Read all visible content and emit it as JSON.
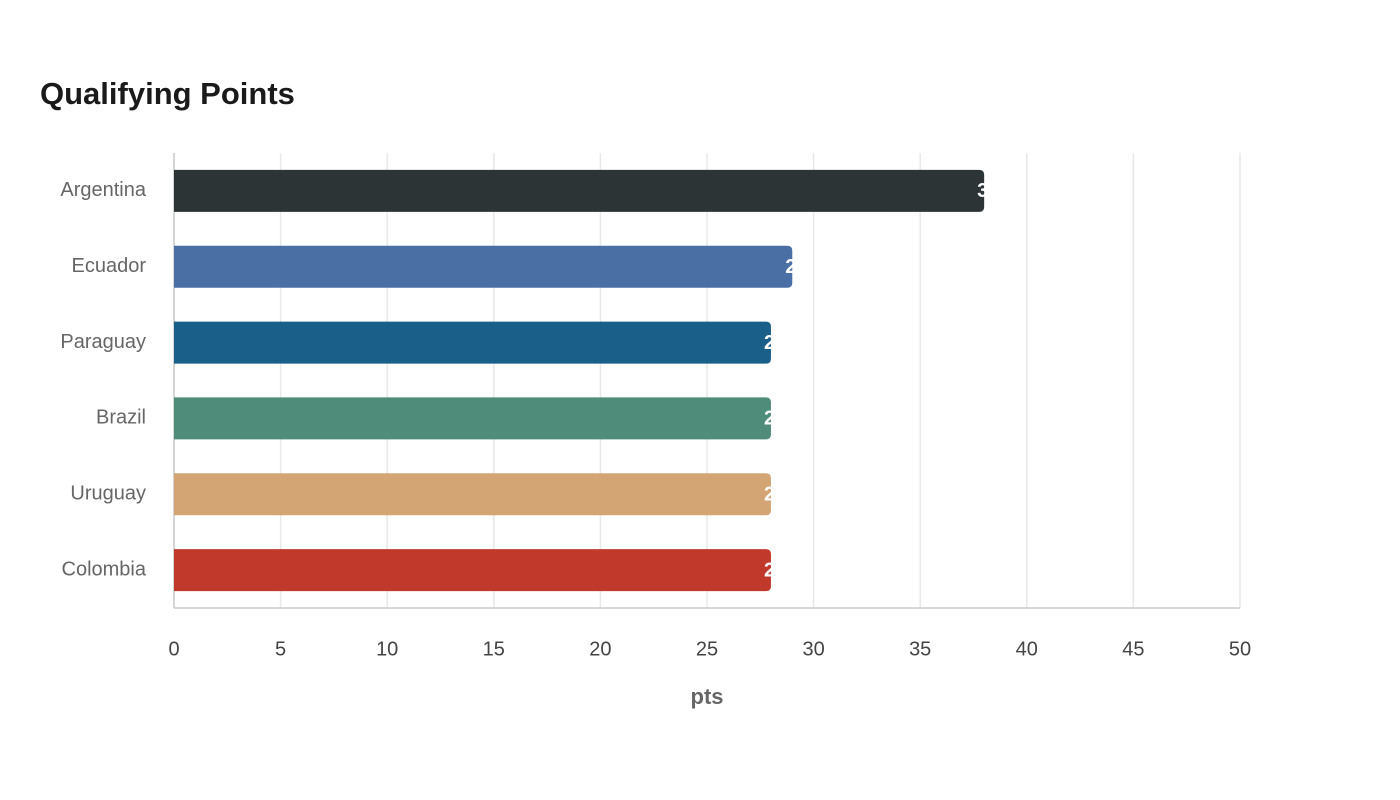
{
  "chart_data": {
    "type": "bar",
    "orientation": "horizontal",
    "title": "Qualifying Points",
    "x_label": "pts",
    "categories": [
      "Argentina",
      "Ecuador",
      "Paraguay",
      "Brazil",
      "Uruguay",
      "Colombia"
    ],
    "values": [
      38,
      29,
      28,
      28,
      28,
      28
    ],
    "colors": [
      "#2d3436",
      "#4a6fa5",
      "#1a5f8a",
      "#4f8c7a",
      "#d4a574",
      "#c0392b"
    ],
    "xlim": [
      0,
      50
    ],
    "xticks": [
      0,
      5,
      10,
      15,
      20,
      25,
      30,
      35,
      40,
      45,
      50
    ],
    "grid": true
  }
}
